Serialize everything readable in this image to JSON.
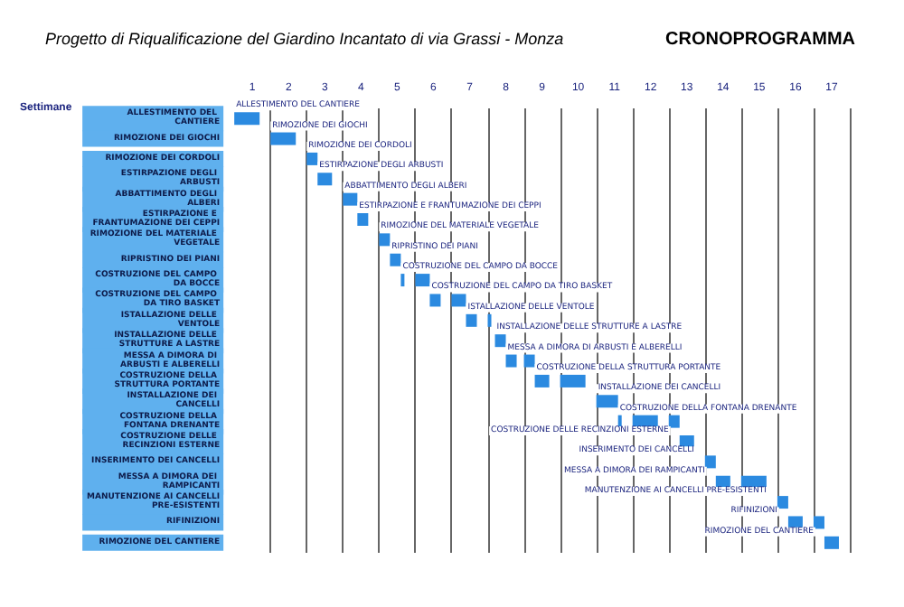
{
  "chart_data": {
    "type": "bar",
    "orientation": "horizontal",
    "title": "Progetto di Riqualificazione del Giardino Incantato di via Grassi - Monza",
    "subtitle": "CRONOPROGRAMMA",
    "xlabel": "Settimane",
    "categories": [
      "ALLESTIMENTO DEL CANTIERE",
      "RIMOZIONE DEI GIOCHI",
      "RIMOZIONE DEI CORDOLI",
      "ESTIRPAZIONE DEGLI ARBUSTI",
      "ABBATTIMENTO DEGLI ALBERI",
      "ESTIRPAZIONE E FRANTUMAZIONE DEI CEPPI",
      "RIMOZIONE DEL MATERIALE VEGETALE",
      "RIPRISTINO DEI PIANI",
      "COSTRUZIONE DEL CAMPO DA BOCCE",
      "COSTRUZIONE DEL CAMPO DA TIRO BASKET",
      "ISTALLAZIONE DELLE VENTOLE",
      "INSTALLAZIONE DELLE STRUTTURE A LASTRE",
      "MESSA A DIMORA DI ARBUSTI E ALBERELLI",
      "COSTRUZIONE DELLA STRUTTURA PORTANTE",
      "INSTALLAZIONE DEI CANCELLI",
      "COSTRUZIONE DELLA FONTANA DRENANTE",
      "COSTRUZIONE DELLE RECINZIONI ESTERNE",
      "INSERIMENTO DEI CANCELLI",
      "MESSA A DIMORA DEI RAMPICANTI",
      "MANUTENZIONE AI CANCELLI PRE-ESISTENTI",
      "RIFINIZIONI",
      "RIMOZIONE DEL CANTIERE"
    ],
    "series": [
      {
        "color": "#2b8ae0",
        "base": [
          0,
          1,
          2,
          2.3,
          3,
          3.4,
          4,
          4.3,
          4.6,
          5.4,
          6.4,
          7.2,
          7.5,
          8.3,
          10,
          10.6,
          12.3,
          13,
          13.3,
          15,
          15.3,
          16.3
        ],
        "values": [
          0.7,
          0.7,
          0.3,
          0.4,
          0.4,
          0.3,
          0.3,
          0.3,
          0.1,
          0.3,
          0.3,
          0.3,
          0.3,
          0.4,
          0.6,
          0.1,
          0.4,
          0.3,
          0.4,
          0.3,
          0.4,
          0.4
        ],
        "value_labels": [
          "ALLESTIMENTO DEL CANTIERE",
          "RIMOZIONE DEI GIOCHI",
          "RIMOZIONE DEI CORDOLI",
          "ESTIRPAZIONE DEGLI ARBUSTI",
          "ABBATTIMENTO DEGLI ALBERI",
          "ESTIRPAZIONE E FRANTUMAZIONE DEI CEPPI",
          "RIMOZIONE DEL MATERIALE VEGETALE",
          "RIPRISTINO DEI PIANI",
          "COSTRUZIONE DEL CAMPO DA BOCCE",
          "COSTRUZIONE DEL CAMPO DA TIRO BASKET",
          "ISTALLAZIONE DELLE VENTOLE",
          "INSTALLAZIONE DELLE STRUTTURE A LASTRE",
          "MESSA A DIMORA DI ARBUSTI E ALBERELLI",
          "COSTRUZIONE DELLA STRUTTURA PORTANTE",
          "INSTALLAZIONE DEI CANCELLI",
          "COSTRUZIONE DELLA FONTANA DRENANTE",
          "COSTRUZIONE DELLE RECINZIONI ESTERNE",
          "INSERIMENTO DEI CANCELLI",
          "MESSA A DIMORA DEI RAMPICANTI",
          "MANUTENZIONE AI CANCELLI PRE-ESISTENTI",
          "RIFINIZIONI",
          "RIMOZIONE DEL CANTIERE"
        ]
      },
      {
        "color": "#2b8ae0",
        "base": [
          null,
          null,
          null,
          null,
          null,
          null,
          null,
          null,
          5,
          6,
          7,
          null,
          8,
          9,
          null,
          11,
          null,
          null,
          14,
          null,
          16,
          null
        ],
        "values": [
          null,
          null,
          null,
          null,
          null,
          null,
          null,
          null,
          0.4,
          0.4,
          0.1,
          null,
          0.3,
          0.7,
          null,
          0.7,
          null,
          null,
          0.7,
          null,
          0.3,
          null
        ]
      },
      {
        "color": "#2b8ae0",
        "base": [
          null,
          null,
          null,
          null,
          null,
          null,
          null,
          null,
          null,
          null,
          null,
          null,
          null,
          null,
          null,
          12,
          null,
          null,
          null,
          null,
          null,
          null
        ],
        "values": [
          null,
          null,
          null,
          null,
          null,
          null,
          null,
          null,
          null,
          null,
          null,
          null,
          null,
          null,
          null,
          0.3,
          null,
          null,
          null,
          null,
          null,
          null
        ]
      }
    ],
    "xlim": [
      0,
      17
    ],
    "xticks": [
      {
        "value": 0.5,
        "label": "1"
      },
      {
        "value": 1.5,
        "label": "2"
      },
      {
        "value": 2.5,
        "label": "3"
      },
      {
        "value": 3.5,
        "label": "4"
      },
      {
        "value": 4.5,
        "label": "5"
      },
      {
        "value": 5.5,
        "label": "6"
      },
      {
        "value": 6.5,
        "label": "7"
      },
      {
        "value": 7.5,
        "label": "8"
      },
      {
        "value": 8.5,
        "label": "9"
      },
      {
        "value": 9.5,
        "label": "10"
      },
      {
        "value": 10.5,
        "label": "11"
      },
      {
        "value": 11.5,
        "label": "12"
      },
      {
        "value": 12.5,
        "label": "13"
      },
      {
        "value": 13.5,
        "label": "14"
      },
      {
        "value": 14.5,
        "label": "15"
      },
      {
        "value": 15.5,
        "label": "16"
      },
      {
        "value": 16.5,
        "label": "17"
      },
      {
        "value": 1,
        "label": null
      },
      {
        "value": 2,
        "label": null
      },
      {
        "value": 3,
        "label": null
      },
      {
        "value": 4,
        "label": null
      },
      {
        "value": 5,
        "label": null
      },
      {
        "value": 6,
        "label": null
      },
      {
        "value": 7,
        "label": null
      },
      {
        "value": 8,
        "label": null
      },
      {
        "value": 9,
        "label": null
      },
      {
        "value": 10,
        "label": null
      },
      {
        "value": 11,
        "label": null
      },
      {
        "value": 12,
        "label": null
      },
      {
        "value": 13,
        "label": null
      },
      {
        "value": 14,
        "label": null
      },
      {
        "value": 15,
        "label": null
      },
      {
        "value": 16,
        "label": null
      },
      {
        "value": 17,
        "label": null
      }
    ],
    "grid": "x"
  }
}
